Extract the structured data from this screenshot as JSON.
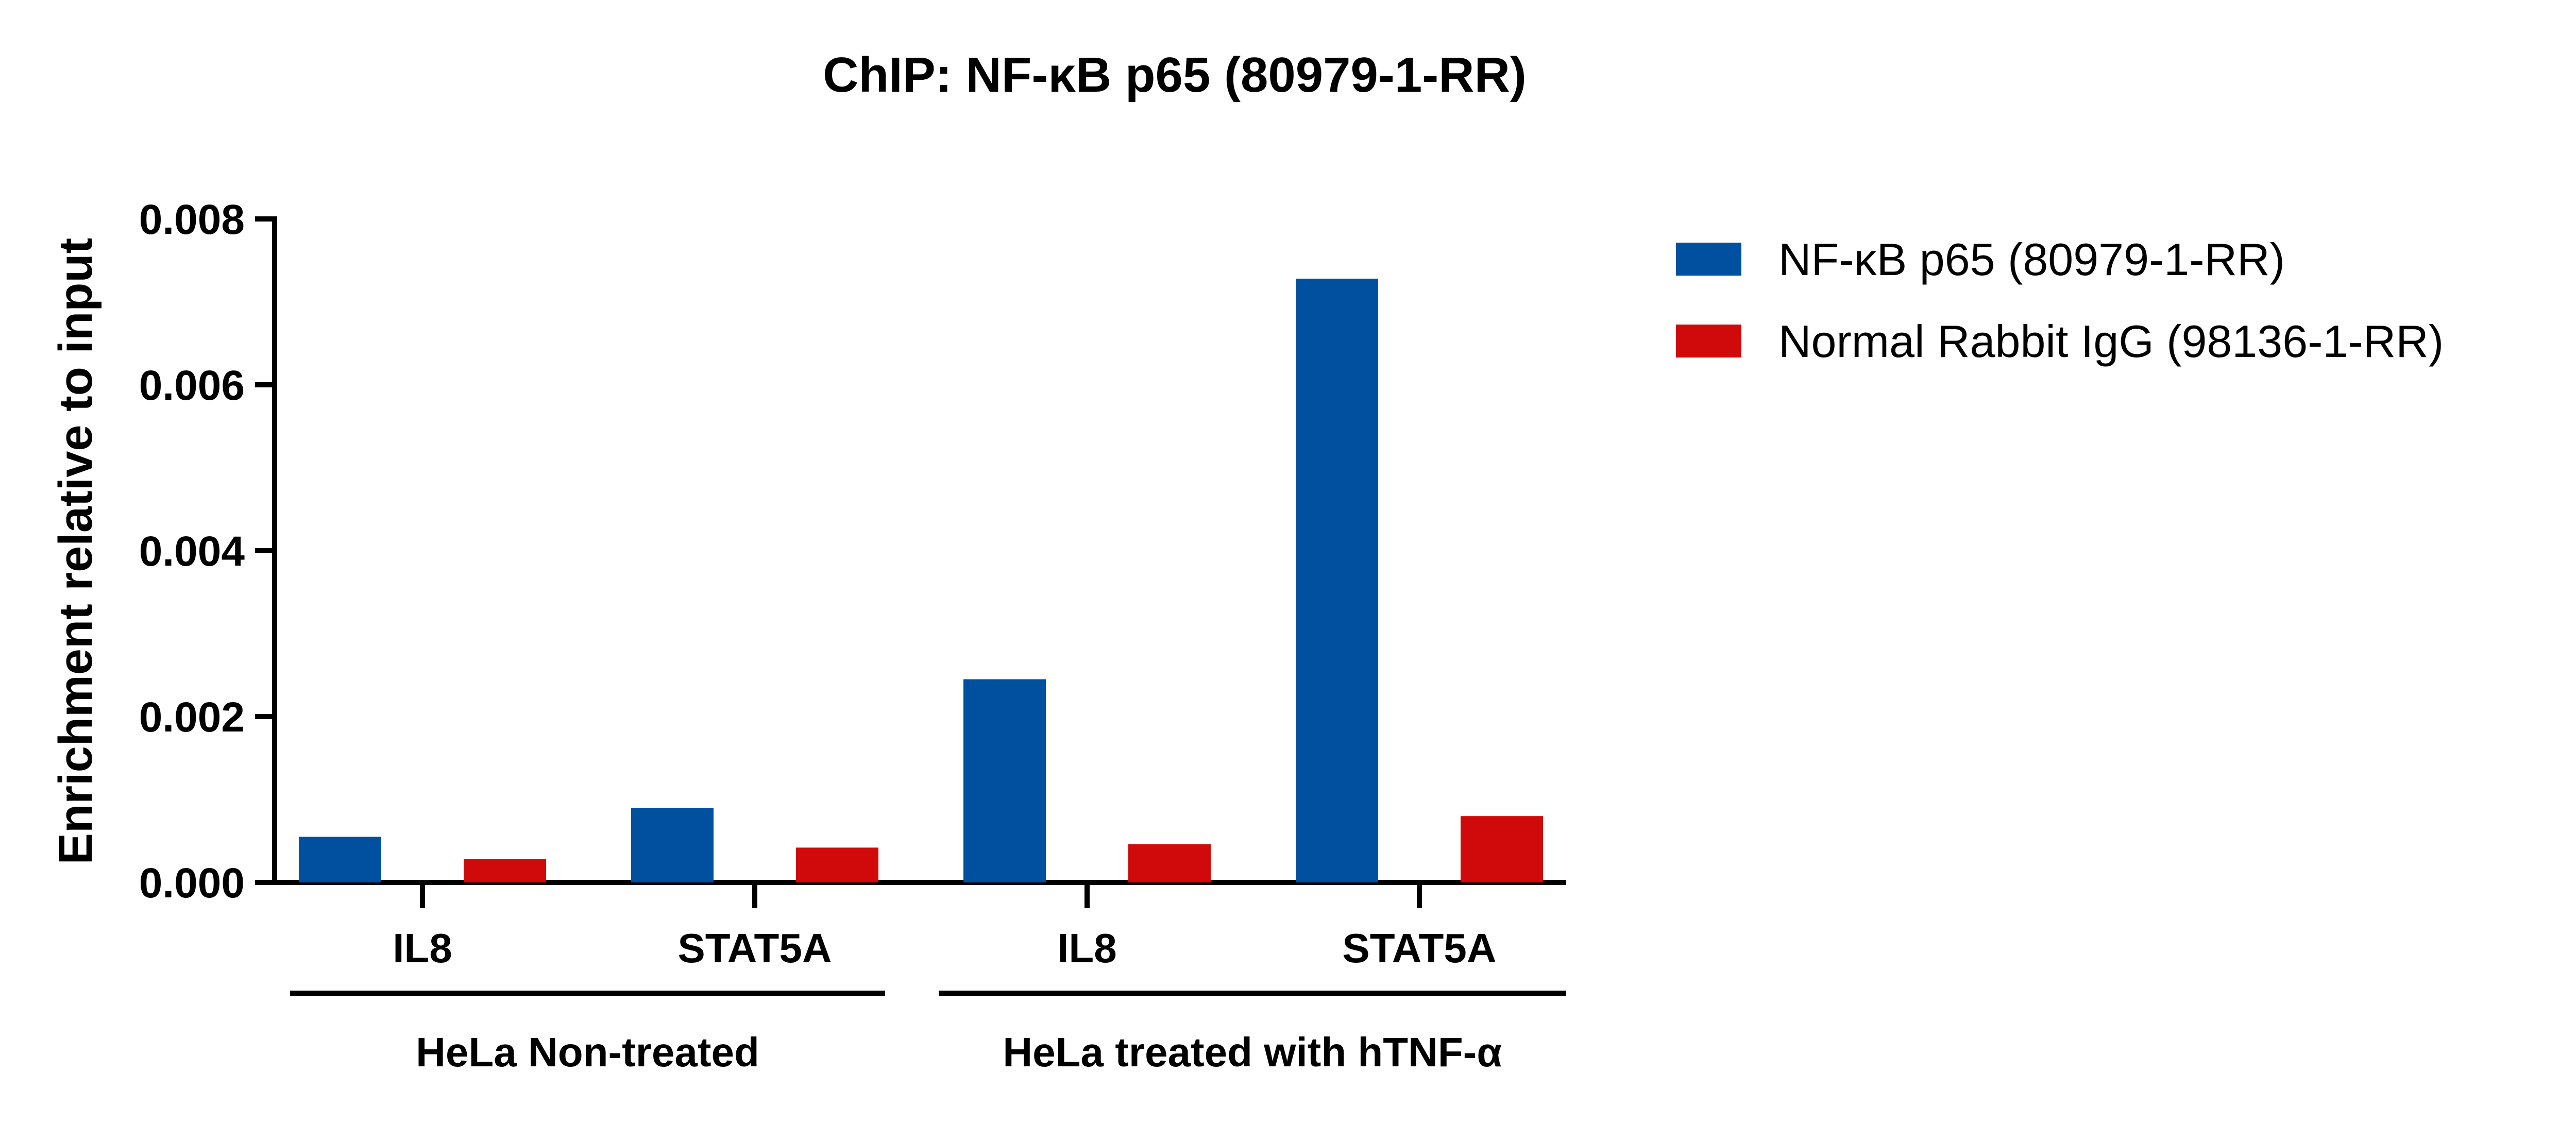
{
  "chart_data": {
    "type": "bar",
    "title": "ChIP: NF-κB p65 (80979-1-RR)",
    "xlabel": "",
    "ylabel": "Enrichment relative to input",
    "ylim": [
      0,
      0.008
    ],
    "yticks": [
      "0.000",
      "0.002",
      "0.004",
      "0.006",
      "0.008"
    ],
    "categories": [
      "IL8",
      "STAT5A",
      "IL8",
      "STAT5A"
    ],
    "groups": [
      {
        "label": "HeLa Non-treated",
        "categories": [
          0,
          1
        ]
      },
      {
        "label": "HeLa treated with hTNF-α",
        "categories": [
          2,
          3
        ]
      }
    ],
    "series": [
      {
        "name": "NF-κB p65 (80979-1-RR)",
        "color": "#0050A0",
        "values": [
          0.00055,
          0.0009,
          0.00245,
          0.00728
        ]
      },
      {
        "name": "Normal Rabbit IgG (98136-1-RR)",
        "color": "#D00A0A",
        "values": [
          0.00028,
          0.00042,
          0.00046,
          0.0008
        ]
      }
    ],
    "legend_position": "top-right",
    "grid": false
  }
}
